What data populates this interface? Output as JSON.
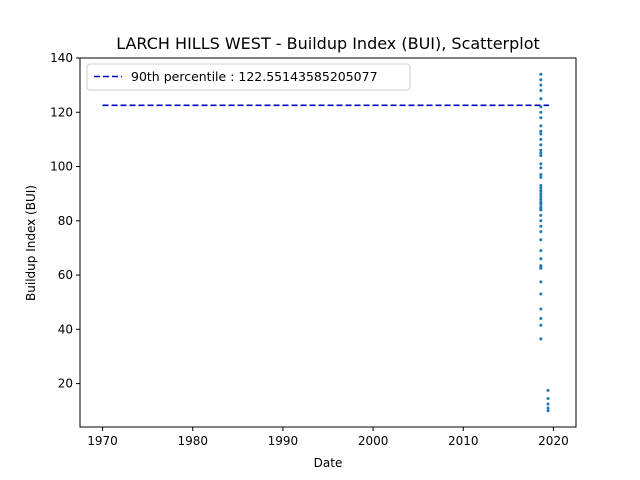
{
  "chart_data": {
    "type": "scatter",
    "title": "LARCH HILLS WEST - Buildup Index (BUI), Scatterplot",
    "xlabel": "Date",
    "ylabel": "Buildup Index (BUI)",
    "xlim": [
      1967.5,
      2022.5
    ],
    "ylim": [
      4,
      140
    ],
    "x_ticks": [
      1970,
      1980,
      1990,
      2000,
      2010,
      2020
    ],
    "y_ticks": [
      20,
      40,
      60,
      80,
      100,
      120,
      140
    ],
    "grid": false,
    "legend": {
      "placement": "top-left",
      "entries": [
        "90th percentile : 122.55143585205077"
      ]
    },
    "reference_line": {
      "name": "90th percentile : 122.55143585205077",
      "value": 122.55143585205077,
      "x_range": [
        1970,
        2019.5
      ],
      "style": "dashed",
      "color": "#0000cc"
    },
    "series": [
      {
        "color": "#1f77b4",
        "x": [
          2018.6,
          2018.6,
          2018.6,
          2018.6,
          2018.6,
          2018.6,
          2018.6,
          2018.6,
          2018.6,
          2018.6,
          2018.6,
          2018.6,
          2018.6,
          2018.6,
          2018.6,
          2018.6,
          2018.6,
          2018.6,
          2018.6,
          2018.6,
          2018.6,
          2018.6,
          2018.6,
          2018.6,
          2018.6,
          2018.6,
          2018.6,
          2018.6,
          2018.6,
          2018.6,
          2018.6,
          2018.6,
          2018.6,
          2018.6,
          2018.6,
          2018.6,
          2018.6,
          2018.6,
          2018.6,
          2018.6,
          2018.6,
          2018.6,
          2018.6,
          2018.6,
          2018.6,
          2018.6,
          2018.6,
          2018.6,
          2019.4,
          2019.4,
          2019.4,
          2019.4,
          2019.4
        ],
        "y": [
          134,
          132,
          130,
          128,
          125,
          122,
          120,
          118,
          115,
          112,
          110,
          108,
          106,
          104,
          101,
          99.5,
          97,
          93,
          92,
          91,
          89,
          88,
          87,
          86,
          85,
          84.5,
          84,
          80,
          78,
          76,
          73,
          69,
          63.5,
          63,
          62.5,
          57.5,
          53,
          47.5,
          41.5,
          36.5,
          113,
          105,
          96,
          90,
          86.5,
          82,
          66,
          44,
          17.5,
          14.5,
          12.5,
          11,
          10
        ]
      }
    ]
  }
}
